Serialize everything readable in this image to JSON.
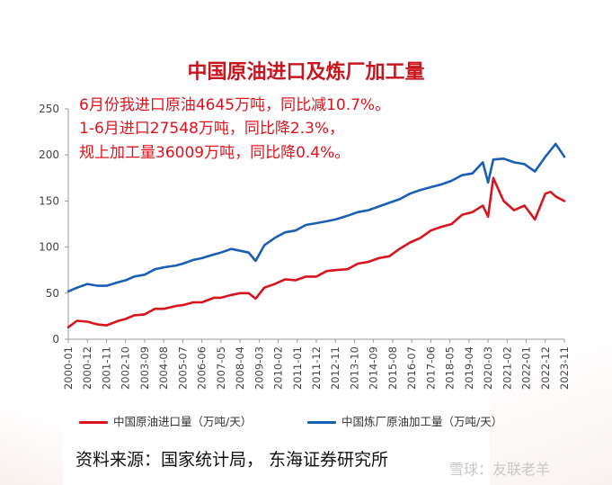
{
  "chart_data": {
    "type": "line",
    "title": "中国原油进口及炼厂加工量",
    "annotations": [
      "6月份我进口原油4645万吨，同比减10.7%。",
      "1-6月进口27548万吨，同比降2.3%，",
      "规上加工量36009万吨，同比降0.4%。"
    ],
    "xlabel": "",
    "ylabel": "",
    "ylim": [
      0,
      250
    ],
    "yticks": [
      0,
      50,
      100,
      150,
      200,
      250
    ],
    "xlim": [
      "2000-01",
      "2023-11"
    ],
    "xticks": [
      "2000-01",
      "2000-12",
      "2001-11",
      "2002-10",
      "2003-09",
      "2004-08",
      "2005-07",
      "2006-06",
      "2007-05",
      "2008-04",
      "2009-03",
      "2010-02",
      "2011-01",
      "2011-12",
      "2012-11",
      "2013-10",
      "2014-09",
      "2015-08",
      "2016-07",
      "2017-06",
      "2018-05",
      "2019-04",
      "2020-03",
      "2021-02",
      "2022-01",
      "2022-12",
      "2023-11"
    ],
    "grid": false,
    "legend_position": "bottom",
    "series": [
      {
        "name": "中国原油进口量（万吨/天）",
        "color": "#d7151e",
        "points": [
          [
            "2000-01",
            13
          ],
          [
            "2000-06",
            20
          ],
          [
            "2000-12",
            19
          ],
          [
            "2001-06",
            16
          ],
          [
            "2001-11",
            15
          ],
          [
            "2002-06",
            20
          ],
          [
            "2002-10",
            22
          ],
          [
            "2003-03",
            26
          ],
          [
            "2003-09",
            27
          ],
          [
            "2004-03",
            33
          ],
          [
            "2004-08",
            33
          ],
          [
            "2005-03",
            36
          ],
          [
            "2005-07",
            37
          ],
          [
            "2006-01",
            40
          ],
          [
            "2006-06",
            40
          ],
          [
            "2007-01",
            45
          ],
          [
            "2007-05",
            45
          ],
          [
            "2007-11",
            48
          ],
          [
            "2008-04",
            50
          ],
          [
            "2008-09",
            50
          ],
          [
            "2009-01",
            44
          ],
          [
            "2009-06",
            56
          ],
          [
            "2009-12",
            60
          ],
          [
            "2010-06",
            65
          ],
          [
            "2010-12",
            64
          ],
          [
            "2011-06",
            68
          ],
          [
            "2011-12",
            68
          ],
          [
            "2012-06",
            74
          ],
          [
            "2012-11",
            75
          ],
          [
            "2013-06",
            76
          ],
          [
            "2013-12",
            82
          ],
          [
            "2014-06",
            84
          ],
          [
            "2014-12",
            88
          ],
          [
            "2015-06",
            90
          ],
          [
            "2015-12",
            98
          ],
          [
            "2016-06",
            105
          ],
          [
            "2016-12",
            110
          ],
          [
            "2017-06",
            118
          ],
          [
            "2017-12",
            122
          ],
          [
            "2018-06",
            125
          ],
          [
            "2018-12",
            135
          ],
          [
            "2019-06",
            138
          ],
          [
            "2019-12",
            145
          ],
          [
            "2020-03",
            133
          ],
          [
            "2020-06",
            175
          ],
          [
            "2020-12",
            150
          ],
          [
            "2021-06",
            140
          ],
          [
            "2021-12",
            145
          ],
          [
            "2022-06",
            130
          ],
          [
            "2022-12",
            158
          ],
          [
            "2023-03",
            160
          ],
          [
            "2023-06",
            155
          ],
          [
            "2023-11",
            150
          ]
        ]
      },
      {
        "name": "中国炼厂原油加工量（万吨/天）",
        "color": "#1a5fb4",
        "points": [
          [
            "2000-01",
            52
          ],
          [
            "2000-06",
            56
          ],
          [
            "2000-12",
            60
          ],
          [
            "2001-06",
            58
          ],
          [
            "2001-11",
            58
          ],
          [
            "2002-06",
            62
          ],
          [
            "2002-10",
            64
          ],
          [
            "2003-03",
            68
          ],
          [
            "2003-09",
            70
          ],
          [
            "2004-03",
            76
          ],
          [
            "2004-08",
            78
          ],
          [
            "2005-03",
            80
          ],
          [
            "2005-07",
            82
          ],
          [
            "2006-01",
            86
          ],
          [
            "2006-06",
            88
          ],
          [
            "2007-01",
            92
          ],
          [
            "2007-05",
            94
          ],
          [
            "2007-11",
            98
          ],
          [
            "2008-04",
            96
          ],
          [
            "2008-09",
            94
          ],
          [
            "2009-01",
            85
          ],
          [
            "2009-06",
            102
          ],
          [
            "2009-12",
            110
          ],
          [
            "2010-06",
            116
          ],
          [
            "2010-12",
            118
          ],
          [
            "2011-06",
            124
          ],
          [
            "2011-12",
            126
          ],
          [
            "2012-06",
            128
          ],
          [
            "2012-11",
            130
          ],
          [
            "2013-06",
            134
          ],
          [
            "2013-12",
            138
          ],
          [
            "2014-06",
            140
          ],
          [
            "2014-12",
            144
          ],
          [
            "2015-06",
            148
          ],
          [
            "2015-12",
            152
          ],
          [
            "2016-06",
            158
          ],
          [
            "2016-12",
            162
          ],
          [
            "2017-06",
            165
          ],
          [
            "2017-12",
            168
          ],
          [
            "2018-06",
            172
          ],
          [
            "2018-12",
            178
          ],
          [
            "2019-06",
            180
          ],
          [
            "2019-12",
            192
          ],
          [
            "2020-03",
            170
          ],
          [
            "2020-06",
            195
          ],
          [
            "2020-12",
            196
          ],
          [
            "2021-06",
            192
          ],
          [
            "2021-12",
            190
          ],
          [
            "2022-06",
            182
          ],
          [
            "2022-12",
            198
          ],
          [
            "2023-03",
            205
          ],
          [
            "2023-06",
            212
          ],
          [
            "2023-11",
            198
          ]
        ]
      }
    ]
  },
  "source": "资料来源：国家统计局， 东海证券研究所",
  "watermark": "雪球：友联老羊"
}
